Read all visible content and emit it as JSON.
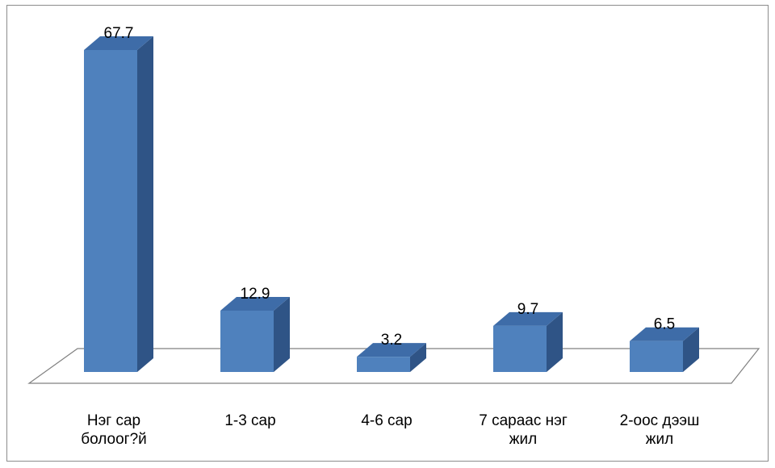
{
  "chart_data": {
    "type": "bar",
    "style": "3d-column",
    "categories": [
      [
        "Нэг сар",
        "болоог?й"
      ],
      [
        "1-3 сар"
      ],
      [
        "4-6 сар"
      ],
      [
        "7 сараас нэг",
        "жил"
      ],
      [
        "2-оос дээш",
        "жил"
      ]
    ],
    "values": [
      67.7,
      12.9,
      3.2,
      9.7,
      6.5
    ],
    "value_labels": [
      "67.7",
      "12.9",
      "3.2",
      "9.7",
      "6.5"
    ],
    "title": "",
    "xlabel": "",
    "ylabel": "",
    "ylim": [
      0,
      70
    ],
    "grid": false,
    "legend": "none",
    "colors": {
      "front": "#4F81BD",
      "side": "#2F5486",
      "top": "#3E6CA8",
      "floor_line": "#808080"
    }
  }
}
